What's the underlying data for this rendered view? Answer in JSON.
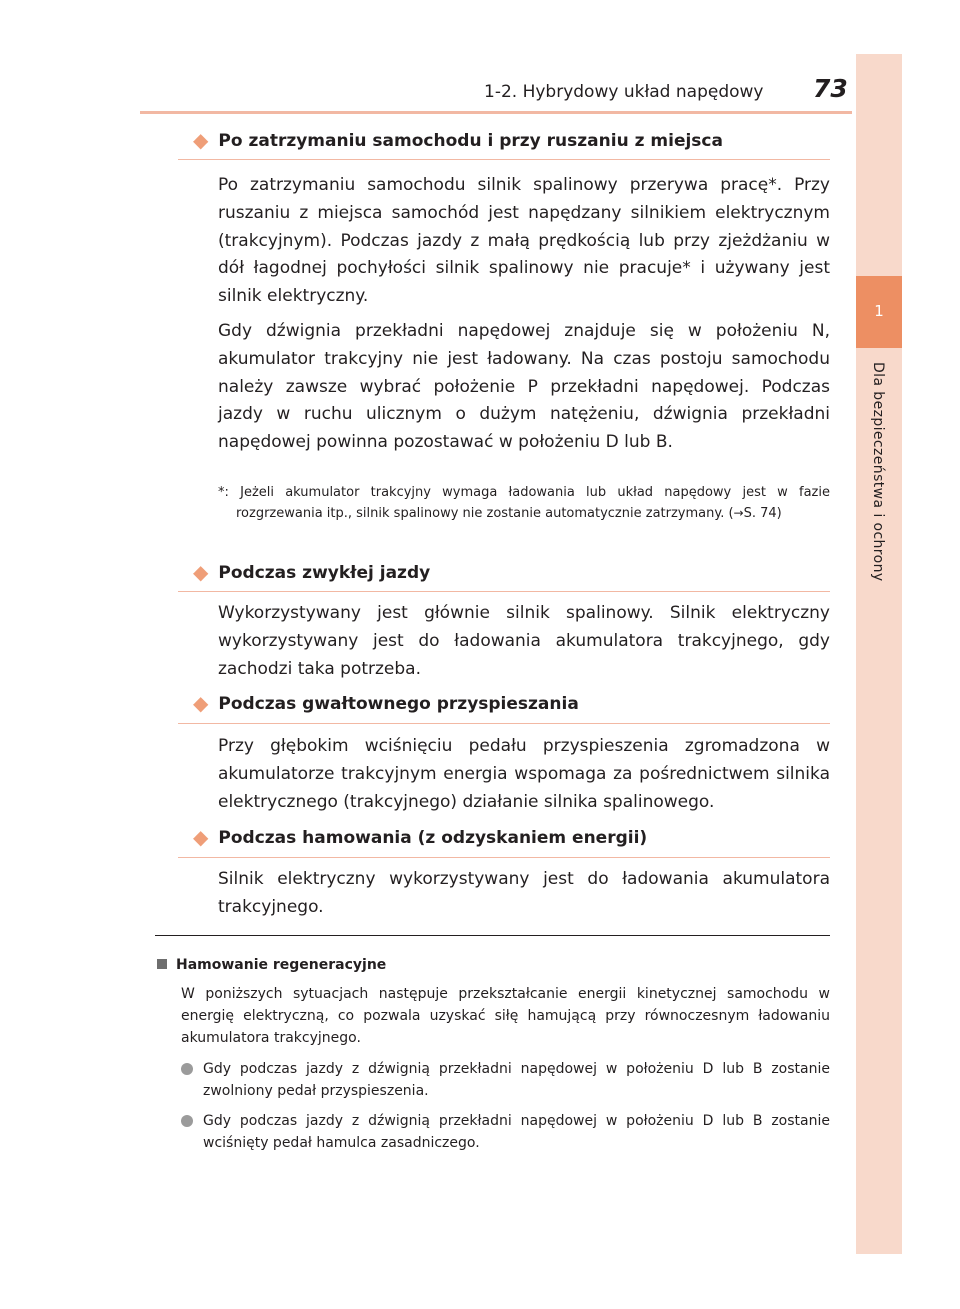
{
  "header": {
    "section": "1-2. Hybrydowy układ napędowy",
    "page": "73"
  },
  "side_tab": {
    "number": "1",
    "label": "Dla bezpieczeństwa i ochrony"
  },
  "sections": [
    {
      "heading": "Po zatrzymaniu samochodu i przy ruszaniu z miejsca",
      "paragraphs": [
        "Po zatrzymaniu samochodu silnik spalinowy przerywa pracę*. Przy ruszaniu z miejsca samochód jest napędzany silnikiem elektrycznym (trakcyjnym). Podczas jazdy z małą prędkością lub przy zjeżdżaniu w dół łagodnej pochyłości silnik spalinowy nie pracuje* i używany jest silnik elektryczny.",
        "Gdy dźwignia przekładni napędowej znajduje się w położeniu N, akumulator trakcyjny nie jest ładowany. Na czas postoju samochodu należy zawsze wybrać położenie P przekładni napędowej. Podczas jazdy w ruchu ulicznym o dużym natężeniu, dźwignia przekładni napędowej powinna pozostawać w położeniu D lub B."
      ],
      "footnote": {
        "marker": "*:",
        "text": "Jeżeli akumulator trakcyjny wymaga ładowania lub układ napędowy jest w fazie rozgrzewania itp., silnik spalinowy nie zostanie automatycznie zatrzymany. (",
        "arrow": "→",
        "ref": "S. 74)"
      }
    },
    {
      "heading": "Podczas zwykłej jazdy",
      "paragraphs": [
        "Wykorzystywany jest głównie silnik spalinowy. Silnik elektryczny wykorzystywany jest do ładowania akumulatora trakcyjnego, gdy zachodzi taka potrzeba."
      ]
    },
    {
      "heading": "Podczas gwałtownego przyspieszania",
      "paragraphs": [
        "Przy głębokim wciśnięciu pedału przyspieszenia zgromadzona w akumulatorze trakcyjnym energia wspomaga za pośrednictwem silnika elektrycznego (trakcyjnego) działanie silnika spalinowego."
      ]
    },
    {
      "heading": "Podczas hamowania (z odzyskaniem energii)",
      "paragraphs": [
        "Silnik elektryczny wykorzystywany jest do ładowania akumulatora trakcyjnego."
      ]
    }
  ],
  "regen": {
    "heading": "Hamowanie regeneracyjne",
    "intro": "W poniższych sytuacjach następuje przekształcanie energii kinetycznej samochodu w energię elektryczną, co pozwala uzyskać siłę hamującą przy równoczesnym ładowaniu akumulatora trakcyjnego.",
    "bullets": [
      "Gdy podczas jazdy z dźwignią przekładni napędowej w położeniu D lub B zostanie zwolniony pedał przyspieszenia.",
      "Gdy podczas jazdy z dźwignią przekładni napędowej w położeniu D lub B zostanie wciśnięty pedał hamulca zasadniczego."
    ]
  },
  "colors": {
    "accent": "#ef9e78",
    "tab": "#f8d9cb",
    "tab_number_bg": "#ed8f63",
    "rule": "#f2b8a3"
  },
  "icons": {
    "section_marker": "diamond-icon",
    "list_marker": "bullet-dot-icon",
    "heading_marker": "square-icon"
  }
}
